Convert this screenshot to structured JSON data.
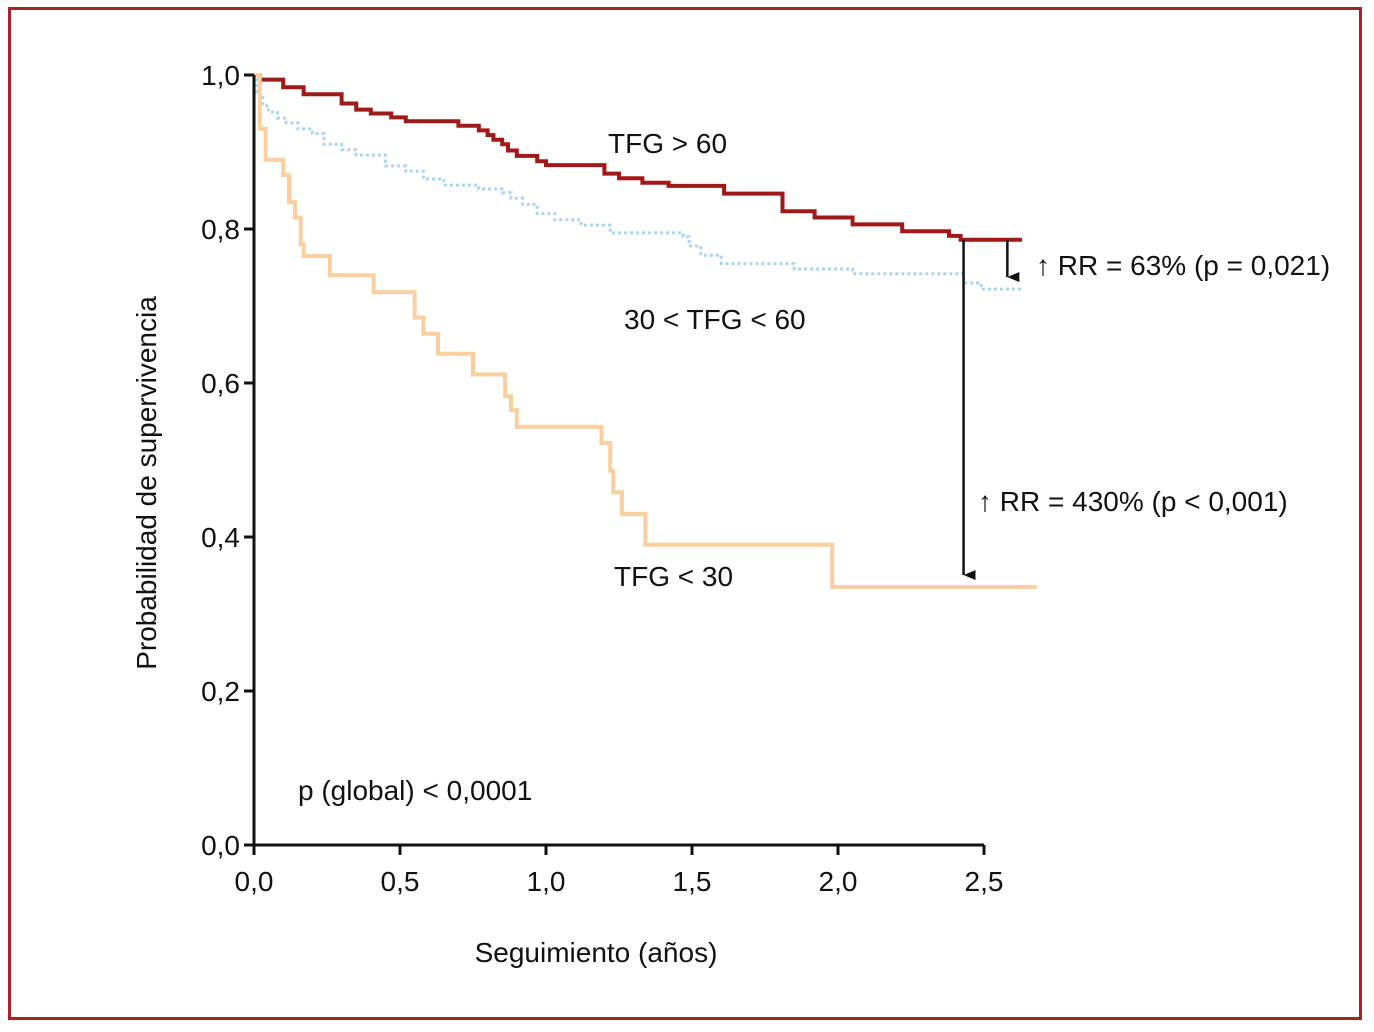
{
  "chart_data": {
    "type": "line",
    "step": true,
    "xlabel": "Seguimiento (años)",
    "ylabel": "Probabilidad de supervivencia",
    "xlim": [
      0,
      2.5
    ],
    "ylim": [
      0,
      1.0
    ],
    "x_ticks": [
      "0,0",
      "0,5",
      "1,0",
      "1,5",
      "2,0",
      "2,5"
    ],
    "x_tick_values": [
      0,
      0.5,
      1.0,
      1.5,
      2.0,
      2.5
    ],
    "y_ticks": [
      "0,0",
      "0,2",
      "0,4",
      "0,6",
      "0,8",
      "1,0"
    ],
    "y_tick_values": [
      0,
      0.2,
      0.4,
      0.6,
      0.8,
      1.0
    ],
    "grid": false,
    "series": [
      {
        "name": "TFG > 60",
        "color": "#a01818",
        "style": "solid",
        "x": [
          0,
          0.02,
          0.1,
          0.17,
          0.3,
          0.35,
          0.4,
          0.47,
          0.52,
          0.7,
          0.77,
          0.8,
          0.82,
          0.85,
          0.87,
          0.9,
          0.97,
          1.0,
          1.2,
          1.25,
          1.33,
          1.42,
          1.61,
          1.81,
          1.92,
          2.05,
          2.22,
          2.38,
          2.42,
          2.63
        ],
        "y": [
          1.0,
          0.994,
          0.984,
          0.975,
          0.963,
          0.955,
          0.95,
          0.945,
          0.94,
          0.934,
          0.928,
          0.922,
          0.916,
          0.91,
          0.902,
          0.895,
          0.888,
          0.883,
          0.872,
          0.866,
          0.86,
          0.856,
          0.846,
          0.823,
          0.815,
          0.806,
          0.797,
          0.791,
          0.786,
          0.786
        ]
      },
      {
        "name": "30 < TFG < 60",
        "color": "#a9d5ee",
        "style": "dotted",
        "x": [
          0,
          0.01,
          0.03,
          0.05,
          0.08,
          0.11,
          0.15,
          0.2,
          0.24,
          0.3,
          0.35,
          0.45,
          0.52,
          0.58,
          0.65,
          0.77,
          0.85,
          0.88,
          0.92,
          0.97,
          1.03,
          1.12,
          1.22,
          1.47,
          1.49,
          1.53,
          1.6,
          1.85,
          2.05,
          2.43,
          2.49,
          2.63
        ],
        "y": [
          1.0,
          0.975,
          0.96,
          0.952,
          0.944,
          0.938,
          0.93,
          0.924,
          0.91,
          0.903,
          0.896,
          0.882,
          0.875,
          0.865,
          0.857,
          0.852,
          0.847,
          0.84,
          0.832,
          0.82,
          0.812,
          0.805,
          0.795,
          0.79,
          0.778,
          0.766,
          0.755,
          0.748,
          0.742,
          0.73,
          0.722,
          0.722
        ]
      },
      {
        "name": "TFG < 30",
        "color": "#f9cf9f",
        "style": "solid",
        "x": [
          0,
          0.02,
          0.04,
          0.1,
          0.12,
          0.14,
          0.16,
          0.17,
          0.26,
          0.41,
          0.55,
          0.58,
          0.63,
          0.75,
          0.86,
          0.88,
          0.9,
          1.19,
          1.22,
          1.23,
          1.26,
          1.34,
          1.98,
          2.68
        ],
        "y": [
          1.0,
          0.93,
          0.89,
          0.87,
          0.835,
          0.815,
          0.78,
          0.765,
          0.74,
          0.718,
          0.685,
          0.664,
          0.638,
          0.611,
          0.583,
          0.565,
          0.543,
          0.522,
          0.486,
          0.458,
          0.43,
          0.39,
          0.335,
          0.335
        ]
      }
    ],
    "annotations": {
      "label_high": "TFG > 60",
      "label_mid": "30 < TFG < 60",
      "label_low": "TFG < 30",
      "rr_mid": "↑ RR = 63% (p = 0,021)",
      "rr_low": "↑ RR = 430% (p < 0,001)",
      "p_global": "p (global) < 0,0001"
    },
    "arrows": [
      {
        "x": 2.58,
        "y_from": 0.786,
        "y_to": 0.722
      },
      {
        "x": 2.43,
        "y_from": 0.786,
        "y_to": 0.335
      }
    ]
  }
}
